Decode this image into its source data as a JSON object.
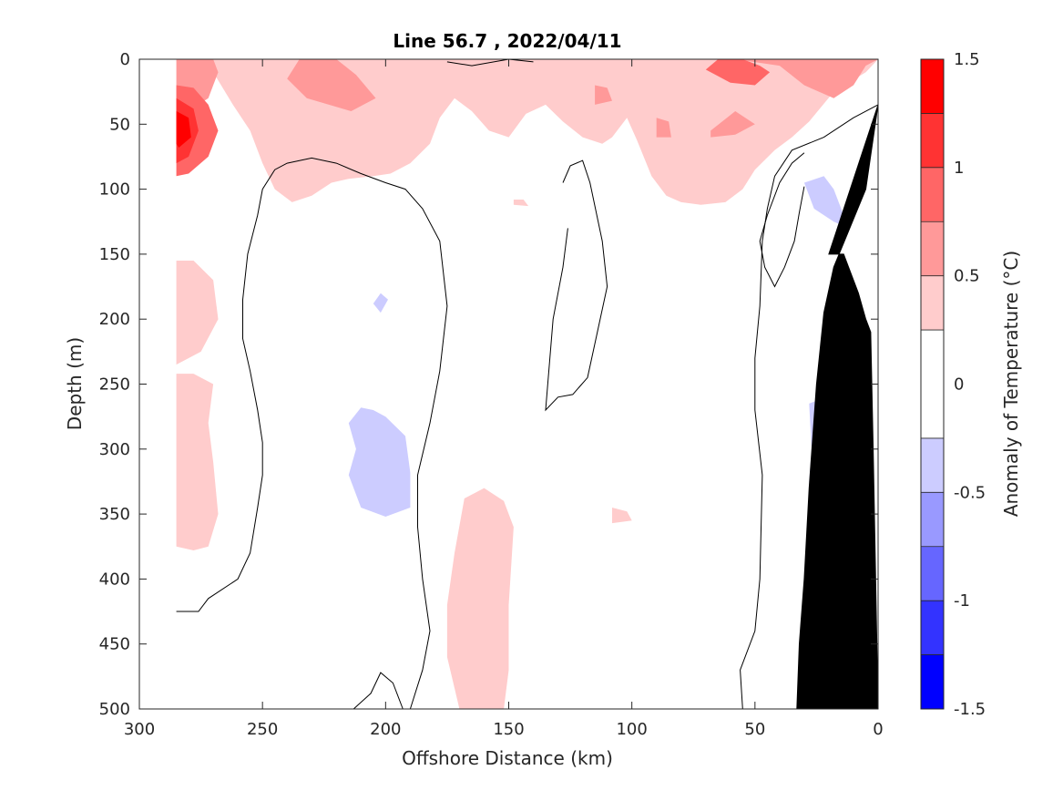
{
  "chart_data": {
    "type": "heatmap",
    "title": "Line 56.7 , 2022/04/11",
    "xlabel": "Offshore Distance (km)",
    "ylabel": "Depth (m)",
    "xlim": [
      300,
      0
    ],
    "ylim": [
      0,
      500
    ],
    "x_ticks": [
      300,
      250,
      200,
      150,
      100,
      50,
      0
    ],
    "y_ticks": [
      0,
      50,
      100,
      150,
      200,
      250,
      300,
      350,
      400,
      450,
      500
    ],
    "x_reversed": true,
    "y_reversed": true,
    "grid": false,
    "colorbar": {
      "label": "Anomaly of Temperature (°C)",
      "range": [
        -1.5,
        1.5
      ],
      "ticks": [
        {
          "value": 1.5,
          "label": "1.5"
        },
        {
          "value": 1,
          "label": "1"
        },
        {
          "value": 0.5,
          "label": "0.5"
        },
        {
          "value": 0,
          "label": "0"
        },
        {
          "value": -0.5,
          "label": "-0.5"
        },
        {
          "value": -1,
          "label": "-1"
        },
        {
          "value": -1.5,
          "label": "-1.5"
        }
      ],
      "levels": [
        -1.5,
        -1.25,
        -1.0,
        -0.75,
        -0.5,
        -0.25,
        0.25,
        0.5,
        0.75,
        1.0,
        1.25,
        1.5
      ],
      "colors": [
        "#0000ff",
        "#3333ff",
        "#6666ff",
        "#9999ff",
        "#ccccff",
        "#ffffff",
        "#ffcccc",
        "#ff9999",
        "#ff6666",
        "#ff3333",
        "#ff0000"
      ]
    },
    "regions": [
      {
        "level": 0.25,
        "points": [
          [
            285,
            0
          ],
          [
            278,
            0
          ],
          [
            270,
            10
          ],
          [
            262,
            35
          ],
          [
            255,
            55
          ],
          [
            250,
            80
          ],
          [
            245,
            100
          ],
          [
            238,
            110
          ],
          [
            230,
            105
          ],
          [
            222,
            95
          ],
          [
            215,
            92
          ],
          [
            205,
            90
          ],
          [
            198,
            88
          ],
          [
            190,
            80
          ],
          [
            182,
            65
          ],
          [
            178,
            45
          ],
          [
            172,
            30
          ],
          [
            165,
            40
          ],
          [
            158,
            55
          ],
          [
            150,
            60
          ],
          [
            143,
            42
          ],
          [
            135,
            35
          ],
          [
            128,
            48
          ],
          [
            120,
            60
          ],
          [
            112,
            65
          ],
          [
            108,
            60
          ],
          [
            102,
            45
          ],
          [
            98,
            62
          ],
          [
            92,
            90
          ],
          [
            86,
            105
          ],
          [
            80,
            110
          ],
          [
            72,
            112
          ],
          [
            62,
            110
          ],
          [
            55,
            100
          ],
          [
            50,
            85
          ],
          [
            42,
            70
          ],
          [
            35,
            60
          ],
          [
            28,
            48
          ],
          [
            18,
            25
          ],
          [
            5,
            10
          ],
          [
            0,
            0
          ]
        ]
      },
      {
        "level": 0.25,
        "points": [
          [
            285,
            155
          ],
          [
            278,
            155
          ],
          [
            270,
            170
          ],
          [
            268,
            200
          ],
          [
            275,
            225
          ],
          [
            285,
            235
          ]
        ]
      },
      {
        "level": 0.25,
        "points": [
          [
            285,
            242
          ],
          [
            278,
            242
          ],
          [
            270,
            250
          ],
          [
            272,
            280
          ],
          [
            270,
            310
          ],
          [
            268,
            350
          ],
          [
            272,
            375
          ],
          [
            278,
            378
          ],
          [
            285,
            375
          ]
        ]
      },
      {
        "level": 0.25,
        "points": [
          [
            168,
            338
          ],
          [
            160,
            330
          ],
          [
            152,
            340
          ],
          [
            148,
            360
          ],
          [
            150,
            420
          ],
          [
            150,
            470
          ],
          [
            152,
            500
          ],
          [
            170,
            500
          ],
          [
            175,
            460
          ],
          [
            175,
            420
          ],
          [
            172,
            380
          ]
        ]
      },
      {
        "level": 0.25,
        "points": [
          [
            108,
            345
          ],
          [
            102,
            348
          ],
          [
            100,
            355
          ],
          [
            108,
            357
          ]
        ]
      },
      {
        "level": 0.25,
        "points": [
          [
            148,
            108
          ],
          [
            144,
            108
          ],
          [
            142,
            113
          ],
          [
            148,
            112
          ]
        ]
      },
      {
        "level": 0.5,
        "points": [
          [
            285,
            0
          ],
          [
            270,
            0
          ],
          [
            268,
            10
          ],
          [
            272,
            30
          ],
          [
            280,
            40
          ],
          [
            285,
            40
          ]
        ]
      },
      {
        "level": 0.5,
        "points": [
          [
            235,
            0
          ],
          [
            220,
            0
          ],
          [
            212,
            12
          ],
          [
            204,
            30
          ],
          [
            214,
            40
          ],
          [
            232,
            30
          ],
          [
            240,
            15
          ]
        ]
      },
      {
        "level": 0.5,
        "points": [
          [
            72,
            0
          ],
          [
            58,
            0
          ],
          [
            40,
            5
          ],
          [
            30,
            20
          ],
          [
            18,
            30
          ],
          [
            10,
            20
          ],
          [
            5,
            5
          ],
          [
            0,
            0
          ]
        ]
      },
      {
        "level": 0.5,
        "points": [
          [
            115,
            20
          ],
          [
            110,
            22
          ],
          [
            108,
            32
          ],
          [
            115,
            35
          ]
        ]
      },
      {
        "level": 0.5,
        "points": [
          [
            68,
            55
          ],
          [
            58,
            40
          ],
          [
            50,
            50
          ],
          [
            58,
            58
          ],
          [
            68,
            60
          ]
        ]
      },
      {
        "level": 0.5,
        "points": [
          [
            90,
            45
          ],
          [
            85,
            48
          ],
          [
            84,
            60
          ],
          [
            90,
            60
          ]
        ]
      },
      {
        "level": 0.75,
        "points": [
          [
            285,
            20
          ],
          [
            278,
            22
          ],
          [
            272,
            35
          ],
          [
            268,
            55
          ],
          [
            272,
            75
          ],
          [
            280,
            88
          ],
          [
            285,
            90
          ]
        ]
      },
      {
        "level": 0.75,
        "points": [
          [
            65,
            0
          ],
          [
            55,
            0
          ],
          [
            48,
            5
          ],
          [
            44,
            10
          ],
          [
            50,
            20
          ],
          [
            60,
            18
          ],
          [
            70,
            8
          ]
        ]
      },
      {
        "level": 1.0,
        "points": [
          [
            285,
            30
          ],
          [
            278,
            38
          ],
          [
            276,
            55
          ],
          [
            280,
            75
          ],
          [
            285,
            80
          ]
        ]
      },
      {
        "level": 1.25,
        "points": [
          [
            285,
            40
          ],
          [
            280,
            45
          ],
          [
            279,
            60
          ],
          [
            284,
            68
          ],
          [
            285,
            65
          ]
        ]
      },
      {
        "level": -0.25,
        "points": [
          [
            205,
            188
          ],
          [
            202,
            180
          ],
          [
            199,
            185
          ],
          [
            202,
            195
          ]
        ]
      },
      {
        "level": -0.25,
        "points": [
          [
            205,
            270
          ],
          [
            210,
            268
          ],
          [
            215,
            280
          ],
          [
            212,
            300
          ],
          [
            215,
            320
          ],
          [
            210,
            345
          ],
          [
            200,
            352
          ],
          [
            190,
            345
          ],
          [
            190,
            318
          ],
          [
            192,
            290
          ],
          [
            200,
            275
          ]
        ]
      },
      {
        "level": -0.25,
        "points": [
          [
            30,
            95
          ],
          [
            22,
            90
          ],
          [
            18,
            100
          ],
          [
            14,
            120
          ],
          [
            12,
            130
          ],
          [
            18,
            125
          ],
          [
            26,
            115
          ]
        ]
      },
      {
        "level": -0.25,
        "points": [
          [
            28,
            265
          ],
          [
            24,
            262
          ],
          [
            20,
            275
          ],
          [
            18,
            300
          ],
          [
            20,
            340
          ],
          [
            25,
            345
          ],
          [
            28,
            325
          ],
          [
            27,
            300
          ]
        ]
      }
    ],
    "contours_zero": [
      [
        [
          285,
          425
        ],
        [
          276,
          425
        ],
        [
          272,
          415
        ],
        [
          260,
          400
        ],
        [
          255,
          380
        ],
        [
          252,
          345
        ],
        [
          250,
          320
        ],
        [
          250,
          295
        ],
        [
          252,
          270
        ],
        [
          255,
          240
        ],
        [
          258,
          215
        ],
        [
          258,
          185
        ],
        [
          256,
          150
        ],
        [
          252,
          120
        ],
        [
          250,
          100
        ],
        [
          245,
          85
        ],
        [
          240,
          80
        ],
        [
          230,
          76
        ],
        [
          220,
          80
        ],
        [
          210,
          88
        ],
        [
          200,
          95
        ],
        [
          192,
          100
        ],
        [
          185,
          115
        ],
        [
          178,
          140
        ],
        [
          175,
          190
        ],
        [
          178,
          240
        ],
        [
          182,
          280
        ],
        [
          187,
          320
        ],
        [
          187,
          360
        ],
        [
          185,
          400
        ],
        [
          182,
          440
        ],
        [
          185,
          470
        ],
        [
          190,
          500
        ]
      ],
      [
        [
          213,
          500
        ],
        [
          206,
          488
        ],
        [
          202,
          472
        ],
        [
          197,
          480
        ],
        [
          193,
          500
        ]
      ],
      [
        [
          128,
          95
        ],
        [
          125,
          82
        ],
        [
          120,
          78
        ],
        [
          117,
          95
        ],
        [
          112,
          140
        ],
        [
          110,
          175
        ],
        [
          114,
          210
        ],
        [
          118,
          245
        ],
        [
          124,
          258
        ],
        [
          130,
          260
        ],
        [
          135,
          270
        ],
        [
          132,
          200
        ],
        [
          128,
          160
        ],
        [
          126,
          130
        ]
      ],
      [
        [
          55,
          500
        ],
        [
          56,
          470
        ],
        [
          50,
          440
        ],
        [
          48,
          400
        ],
        [
          47,
          320
        ],
        [
          50,
          270
        ],
        [
          50,
          230
        ],
        [
          48,
          190
        ],
        [
          47,
          140
        ],
        [
          45,
          115
        ],
        [
          42,
          90
        ],
        [
          35,
          70
        ],
        [
          22,
          60
        ],
        [
          10,
          45
        ],
        [
          0,
          35
        ]
      ],
      [
        [
          30,
          72
        ],
        [
          35,
          80
        ],
        [
          40,
          95
        ],
        [
          45,
          120
        ],
        [
          48,
          140
        ],
        [
          46,
          160
        ],
        [
          42,
          175
        ],
        [
          38,
          160
        ],
        [
          34,
          140
        ],
        [
          32,
          118
        ],
        [
          30,
          98
        ]
      ],
      [
        [
          175,
          2
        ],
        [
          165,
          5
        ],
        [
          150,
          0
        ],
        [
          140,
          2
        ]
      ]
    ],
    "land": [
      [
        20,
        150
      ],
      [
        14,
        150
      ],
      [
        12,
        160
      ],
      [
        8,
        180
      ],
      [
        5,
        200
      ],
      [
        3,
        210
      ],
      [
        2,
        300
      ],
      [
        0,
        500
      ],
      [
        33,
        500
      ],
      [
        32,
        450
      ],
      [
        30,
        400
      ],
      [
        28,
        330
      ],
      [
        25,
        250
      ],
      [
        22,
        195
      ],
      [
        18,
        160
      ],
      [
        5,
        100
      ],
      [
        0,
        35
      ]
    ]
  }
}
